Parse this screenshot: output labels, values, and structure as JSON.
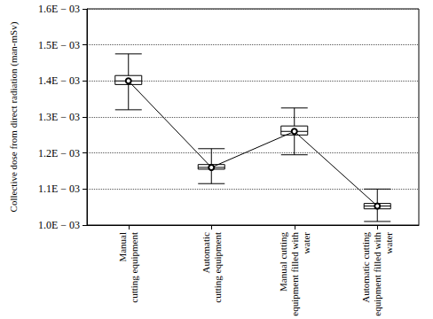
{
  "chart_data": {
    "type": "boxplot",
    "y_label": "Collective dose from direct radiation (man-mSv)",
    "categories": [
      "Manual\ncutting equipment",
      "Automatic\ncutting equipment",
      "Manual cutting\nequipment filled with\nwater",
      "Automatic cutting\nequipment filled with\nwater"
    ],
    "series": [
      {
        "type": "boxplot",
        "color": "#000000",
        "values": [
          [
            0.00132,
            0.00139,
            0.0014,
            0.001415,
            0.001475
          ],
          [
            0.001115,
            0.001155,
            0.00116,
            0.001168,
            0.001212
          ],
          [
            0.001195,
            0.00125,
            0.00126,
            0.001275,
            0.001325
          ],
          [
            0.00101,
            0.001045,
            0.001053,
            0.00106,
            0.0011
          ]
        ]
      },
      {
        "type": "line",
        "color": "#000000",
        "marker": "emptyCircle",
        "line_style": "solid",
        "values": [
          0.0014,
          0.00116,
          0.00126,
          0.001053
        ]
      }
    ],
    "ylim": [
      0.001,
      0.0016
    ],
    "yticks": [
      {
        "value": 0.001,
        "label": "1.0E − 03"
      },
      {
        "value": 0.0011,
        "label": "1.1E − 03"
      },
      {
        "value": 0.0012,
        "label": "1.2E − 03"
      },
      {
        "value": 0.0013,
        "label": "1.3E − 03"
      },
      {
        "value": 0.0014,
        "label": "1.4E − 03"
      },
      {
        "value": 0.0015,
        "label": "1.5E − 03"
      },
      {
        "value": 0.0016,
        "label": "1.6E − 03"
      }
    ],
    "grid": true
  }
}
